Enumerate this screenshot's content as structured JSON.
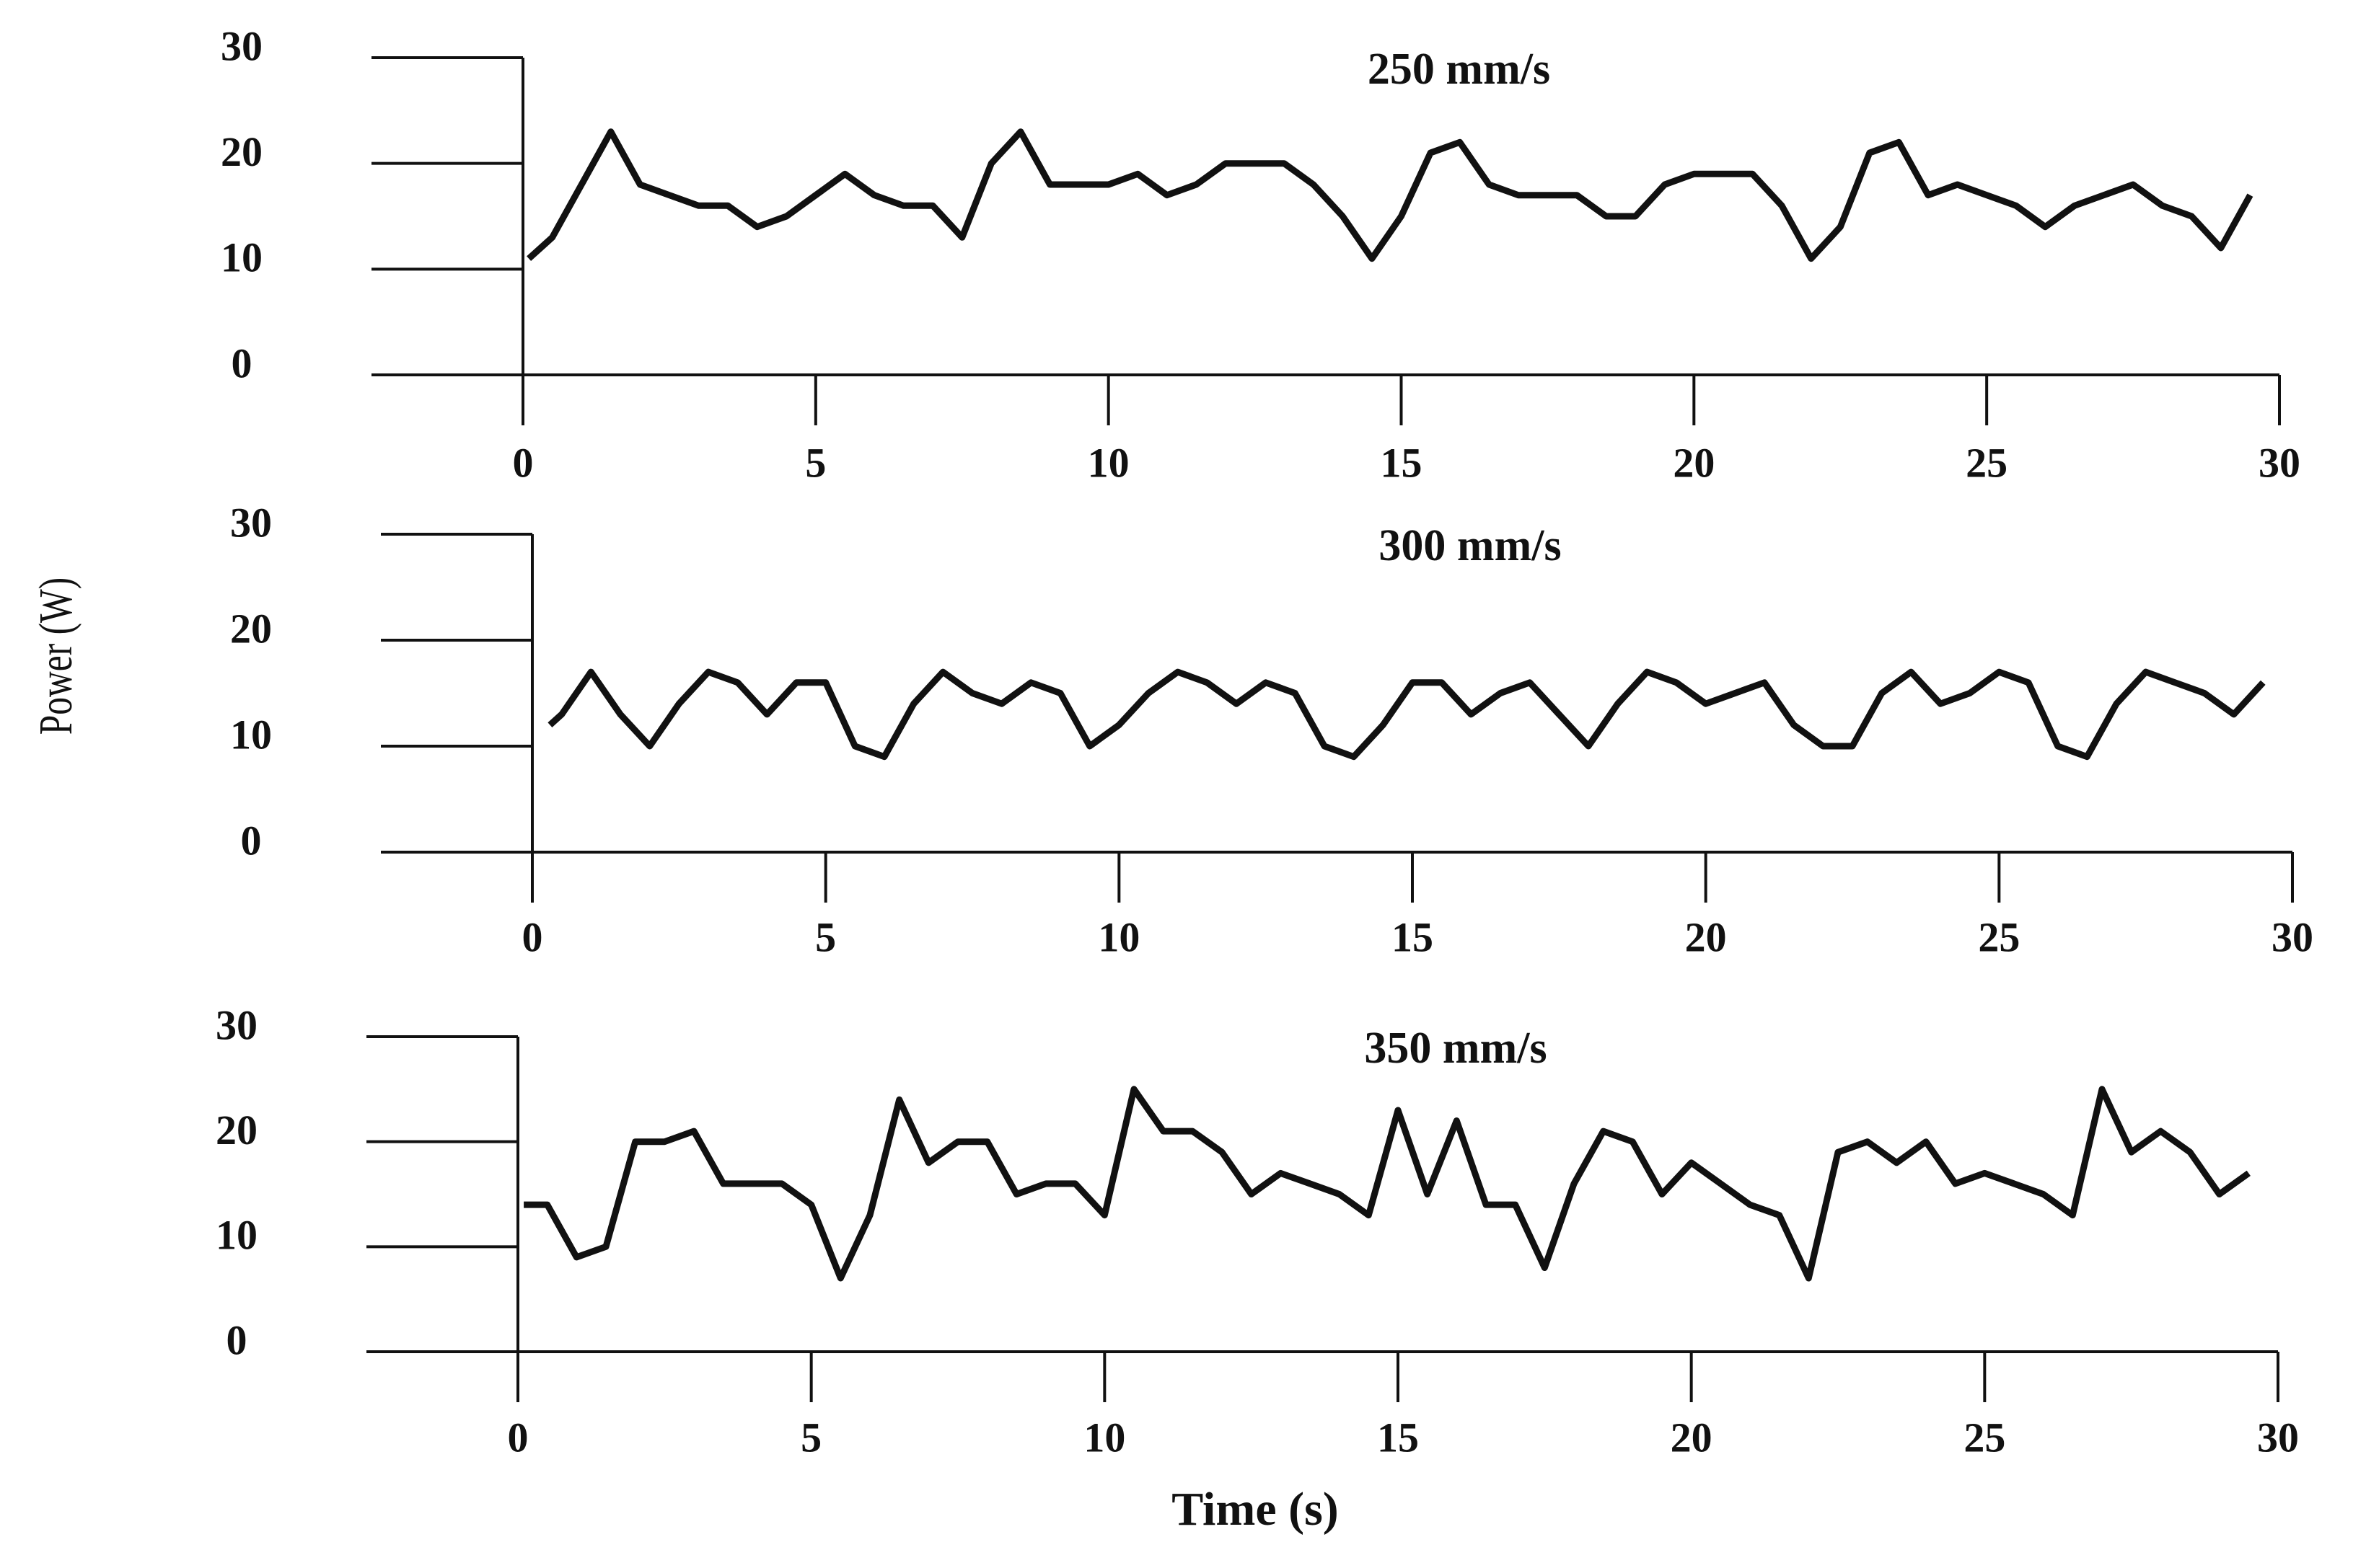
{
  "y_label": "Power (W)",
  "x_label": "Time (s)",
  "chart_data": [
    {
      "type": "line",
      "title": "250 mm/s",
      "x": [
        0.1,
        0.5,
        1,
        1.5,
        2,
        2.5,
        3,
        3.5,
        4,
        4.5,
        5,
        5.5,
        6,
        6.5,
        7,
        7.5,
        8,
        8.5,
        9,
        9.5,
        10,
        10.5,
        11,
        11.5,
        12,
        12.5,
        13,
        13.5,
        14,
        14.5,
        15,
        15.5,
        16,
        16.5,
        17,
        17.5,
        18,
        18.5,
        19,
        19.5,
        20,
        20.5,
        21,
        21.5,
        22,
        22.5,
        23,
        23.5,
        24,
        24.5,
        25,
        25.5,
        26,
        26.5,
        27,
        27.5,
        28,
        28.5,
        29,
        29.5
      ],
      "series": [
        {
          "color": "#111111",
          "values": [
            11,
            13,
            18,
            23,
            18,
            17,
            16,
            16,
            14,
            15,
            17,
            19,
            17,
            16,
            16,
            13,
            20,
            23,
            18,
            18,
            18,
            19,
            17,
            18,
            20,
            20,
            20,
            18,
            15,
            11,
            15,
            21,
            22,
            18,
            17,
            17,
            17,
            15,
            15,
            18,
            19,
            19,
            19,
            16,
            11,
            14,
            21,
            22,
            17,
            18,
            17,
            16,
            14,
            16,
            17,
            18,
            16,
            15,
            12,
            17
          ]
        }
      ],
      "xlim": [
        0,
        30
      ],
      "xticks": [
        0,
        5,
        10,
        15,
        20,
        25,
        30
      ],
      "ylim": [
        0,
        30
      ],
      "yticks": [
        0,
        10,
        20,
        30
      ]
    },
    {
      "type": "line",
      "title": "300 mm/s",
      "x": [
        0.3,
        0.5,
        1,
        1.5,
        2,
        2.5,
        3,
        3.5,
        4,
        4.5,
        5,
        5.5,
        6,
        6.5,
        7,
        7.5,
        8,
        8.5,
        9,
        9.5,
        10,
        10.5,
        11,
        11.5,
        12,
        12.5,
        13,
        13.5,
        14,
        14.5,
        15,
        15.5,
        16,
        16.5,
        17,
        17.5,
        18,
        18.5,
        19,
        19.5,
        20,
        20.5,
        21,
        21.5,
        22,
        22.5,
        23,
        23.5,
        24,
        24.5,
        25,
        25.5,
        26,
        26.5,
        27,
        27.5,
        28,
        28.5,
        29,
        29.5
      ],
      "series": [
        {
          "color": "#111111",
          "values": [
            12,
            13,
            17,
            13,
            10,
            14,
            17,
            16,
            13,
            16,
            16,
            10,
            9,
            14,
            17,
            15,
            14,
            16,
            15,
            10,
            12,
            15,
            17,
            16,
            14,
            16,
            15,
            10,
            9,
            12,
            16,
            16,
            13,
            15,
            16,
            13,
            10,
            14,
            17,
            16,
            14,
            15,
            16,
            12,
            10,
            10,
            15,
            17,
            14,
            15,
            17,
            16,
            10,
            9,
            14,
            17,
            16,
            15,
            13,
            16
          ]
        }
      ],
      "xlim": [
        0,
        30
      ],
      "xticks": [
        0,
        5,
        10,
        15,
        20,
        25,
        30
      ],
      "ylim": [
        0,
        30
      ],
      "yticks": [
        0,
        10,
        20,
        30
      ]
    },
    {
      "type": "line",
      "title": "350 mm/s",
      "x": [
        0.1,
        0.5,
        1,
        1.5,
        2,
        2.5,
        3,
        3.5,
        4,
        4.5,
        5,
        5.5,
        6,
        6.5,
        7,
        7.5,
        8,
        8.5,
        9,
        9.5,
        10,
        10.5,
        11,
        11.5,
        12,
        12.5,
        13,
        13.5,
        14,
        14.5,
        15,
        15.5,
        16,
        16.5,
        17,
        17.5,
        18,
        18.5,
        19,
        19.5,
        20,
        20.5,
        21,
        21.5,
        22,
        22.5,
        23,
        23.5,
        24,
        24.5,
        25,
        25.5,
        26,
        26.5,
        27,
        27.5,
        28,
        28.5,
        29,
        29.5
      ],
      "series": [
        {
          "color": "#111111",
          "values": [
            14,
            14,
            9,
            10,
            20,
            20,
            21,
            16,
            16,
            16,
            14,
            7,
            13,
            24,
            18,
            20,
            20,
            15,
            16,
            16,
            13,
            25,
            21,
            21,
            19,
            15,
            17,
            16,
            15,
            13,
            23,
            15,
            22,
            14,
            14,
            8,
            16,
            21,
            20,
            15,
            18,
            16,
            14,
            13,
            7,
            19,
            20,
            18,
            20,
            16,
            17,
            16,
            15,
            13,
            25,
            19,
            21,
            19,
            15,
            17
          ]
        }
      ],
      "xlim": [
        0,
        30
      ],
      "xticks": [
        0,
        5,
        10,
        15,
        20,
        25,
        30
      ],
      "ylim": [
        0,
        30
      ],
      "yticks": [
        0,
        10,
        20,
        30
      ]
    }
  ]
}
